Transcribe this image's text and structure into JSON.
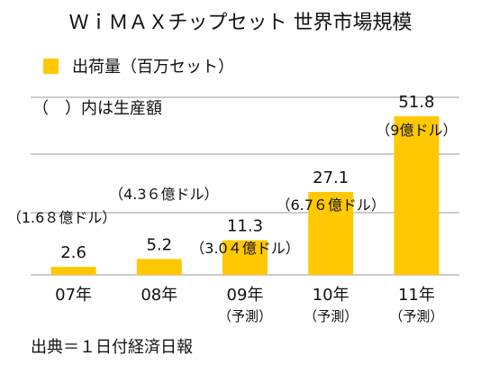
{
  "chart_data": {
    "type": "bar",
    "title": "ＷｉＭＡＸチップセット 世界市場規模",
    "legend": {
      "series_label": "出荷量（百万セット）",
      "paren_label": "（　）内は生産額",
      "position": "top-left"
    },
    "categories": [
      "07年",
      "08年",
      "09年",
      "10年",
      "11年"
    ],
    "category_sublabels": [
      "",
      "",
      "（予測）",
      "（予測）",
      "（予測）"
    ],
    "values": [
      2.6,
      5.2,
      11.3,
      27.1,
      51.8
    ],
    "value_labels": [
      "2.6",
      "5.2",
      "11.3",
      "27.1",
      "51.8"
    ],
    "paren_labels": [
      "（1.6８億ドル）",
      "（4.3６億ドル）",
      "（3.0４億ドル）",
      "（6.7６億ドル）",
      "（9億ドル）"
    ],
    "ylim": [
      0,
      58
    ],
    "grid": true,
    "xlabel": "",
    "ylabel": "",
    "bar_color": "#FFC800"
  },
  "footer": {
    "source": "出典＝１日付経済日報"
  },
  "colors": {
    "bar": "#FFC800",
    "grid": "#9a9a9a",
    "text": "#111111"
  }
}
